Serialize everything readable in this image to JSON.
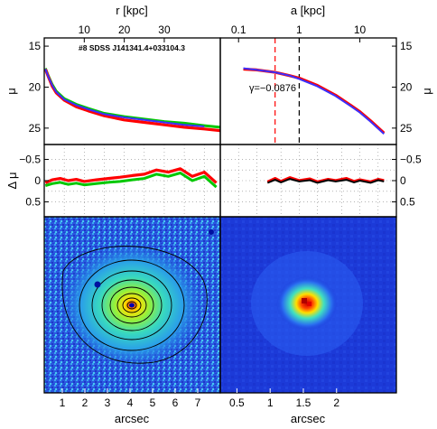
{
  "figure": {
    "object_label": "#8 SDSS J141341.4+033104.3",
    "gamma_label": "γ=−0.0876",
    "top_left_axis_label": "r [kpc]",
    "top_right_axis_label": "a [kpc]",
    "mu_label": "μ",
    "delta_mu_label": "Δ μ",
    "bottom_left_axis_label": "arcsec",
    "bottom_right_axis_label": "arcsec"
  },
  "colors": {
    "profile_red": "#ff0000",
    "profile_green": "#00c800",
    "profile_blue": "#0000ff",
    "profile_black": "#000000",
    "dashed_red": "#ff0000",
    "dashed_black": "#000000",
    "map_background": "#1a3ad8"
  },
  "chart_data": [
    {
      "type": "line",
      "panel": "surface-brightness-profile-linear",
      "title": "#8 SDSS J141341.4+033104.3",
      "xlabel": "r [kpc]",
      "ylabel": "μ",
      "xlim": [
        0,
        44
      ],
      "ylim": [
        27,
        14
      ],
      "x_ticks": [
        10,
        20,
        30
      ],
      "y_ticks": [
        15,
        20,
        25
      ],
      "series": [
        {
          "color": "green",
          "x": [
            0.3,
            1,
            2,
            3,
            5,
            8,
            11,
            15,
            20,
            25,
            30,
            35,
            40,
            44
          ],
          "y": [
            17.7,
            18.6,
            19.7,
            20.5,
            21.4,
            22.1,
            22.6,
            23.2,
            23.6,
            23.9,
            24.2,
            24.4,
            24.7,
            24.9
          ]
        },
        {
          "color": "red",
          "x": [
            0.3,
            1,
            2,
            3,
            5,
            8,
            11,
            15,
            20,
            25,
            30,
            35,
            40,
            44
          ],
          "y": [
            17.8,
            18.7,
            19.9,
            20.7,
            21.6,
            22.4,
            22.9,
            23.5,
            24.0,
            24.3,
            24.6,
            24.9,
            25.1,
            25.3
          ]
        },
        {
          "color": "blue",
          "x": [
            0.3,
            1,
            2,
            3,
            5,
            8,
            11,
            15,
            20,
            25,
            30,
            35,
            40
          ],
          "y": [
            17.8,
            18.7,
            19.8,
            20.6,
            21.5,
            22.2,
            22.7,
            23.3,
            23.7,
            24.0,
            24.3,
            24.6,
            24.8
          ]
        }
      ]
    },
    {
      "type": "line",
      "panel": "surface-brightness-profile-log",
      "xlabel": "a [kpc]",
      "ylabel": "μ",
      "xscale": "log",
      "xlim": [
        0.05,
        40
      ],
      "ylim": [
        27,
        14
      ],
      "x_ticks": [
        0.1,
        1,
        10
      ],
      "y_ticks": [
        15,
        20,
        25
      ],
      "annotation": "γ=−0.0876",
      "vlines": [
        {
          "x": 0.4,
          "color": "red",
          "style": "dashed"
        },
        {
          "x": 1.0,
          "color": "black",
          "style": "dashed"
        }
      ],
      "series": [
        {
          "color": "red",
          "x": [
            0.12,
            0.2,
            0.4,
            0.7,
            1,
            2,
            4,
            7,
            10,
            15,
            25
          ],
          "y": [
            17.8,
            17.9,
            18.2,
            18.6,
            18.9,
            19.8,
            21.0,
            22.2,
            23.0,
            24.1,
            25.6
          ]
        },
        {
          "color": "blue",
          "x": [
            0.12,
            0.2,
            0.4,
            0.7,
            1,
            2,
            4,
            7,
            10,
            15,
            25
          ],
          "y": [
            17.7,
            17.9,
            18.2,
            18.6,
            19.0,
            19.9,
            21.1,
            22.3,
            23.1,
            24.2,
            25.7
          ]
        }
      ]
    },
    {
      "type": "line",
      "panel": "residuals-linear",
      "ylabel": "Δ μ",
      "xlim": [
        0,
        44
      ],
      "ylim": [
        0.85,
        -0.85
      ],
      "y_ticks": [
        -0.5,
        0,
        0.5
      ],
      "series": [
        {
          "color": "red",
          "x": [
            0.3,
            2,
            4,
            6,
            8,
            10,
            13,
            16,
            19,
            22,
            25,
            28,
            31,
            34,
            37,
            40,
            43
          ],
          "y": [
            0.05,
            -0.02,
            -0.05,
            0.0,
            -0.03,
            0.02,
            -0.02,
            -0.05,
            -0.08,
            -0.12,
            -0.15,
            -0.25,
            -0.2,
            -0.28,
            -0.1,
            -0.2,
            0.05
          ]
        },
        {
          "color": "green",
          "x": [
            0.3,
            2,
            4,
            6,
            8,
            10,
            13,
            16,
            19,
            22,
            25,
            28,
            31,
            34,
            37,
            40,
            43
          ],
          "y": [
            0.12,
            0.07,
            0.04,
            0.09,
            0.06,
            0.1,
            0.07,
            0.04,
            0.02,
            -0.02,
            -0.05,
            -0.15,
            -0.1,
            -0.18,
            0.0,
            -0.1,
            0.15
          ]
        }
      ]
    },
    {
      "type": "line",
      "panel": "residuals-log",
      "xscale": "log",
      "xlim": [
        0.05,
        40
      ],
      "ylim": [
        0.85,
        -0.85
      ],
      "y_ticks": [
        -0.5,
        0,
        0.5
      ],
      "series": [
        {
          "color": "red",
          "x": [
            0.3,
            0.4,
            0.5,
            0.7,
            1,
            1.5,
            2,
            3,
            4,
            6,
            8,
            10,
            15,
            20,
            25
          ],
          "y": [
            0.03,
            -0.05,
            0.02,
            -0.07,
            0.0,
            -0.04,
            0.03,
            -0.03,
            0.0,
            -0.05,
            0.02,
            -0.02,
            0.03,
            -0.03,
            0.0
          ]
        },
        {
          "color": "black",
          "x": [
            0.3,
            0.4,
            0.5,
            0.7,
            1,
            1.5,
            2,
            3,
            4,
            6,
            8,
            10,
            15,
            20,
            25
          ],
          "y": [
            0.05,
            -0.02,
            0.04,
            -0.04,
            0.02,
            -0.01,
            0.05,
            -0.01,
            0.02,
            -0.02,
            0.04,
            0.0,
            0.05,
            -0.01,
            0.02
          ]
        }
      ]
    },
    {
      "type": "heatmap",
      "panel": "galaxy-image-contours",
      "xlabel": "arcsec",
      "x_ticks": [
        1,
        2,
        3,
        4,
        5,
        6,
        7
      ],
      "xlim": [
        0.2,
        8
      ]
    },
    {
      "type": "heatmap",
      "panel": "galaxy-image-model",
      "xlabel": "arcsec",
      "x_ticks": [
        0.5,
        1,
        1.5,
        2
      ],
      "xlim": [
        0.25,
        2.9
      ]
    }
  ]
}
